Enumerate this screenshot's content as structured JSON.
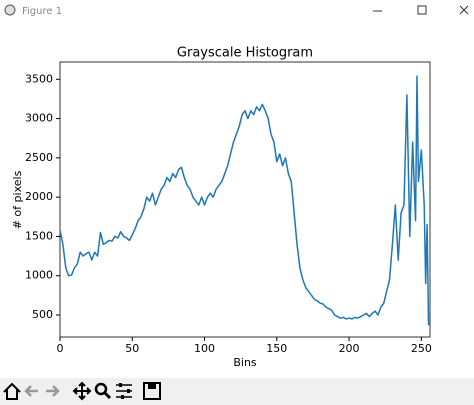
{
  "window": {
    "title": "Figure 1"
  },
  "chart_data": {
    "type": "line",
    "title": "Grayscale Histogram",
    "xlabel": "Bins",
    "ylabel": "# of pixels",
    "x": [
      0,
      2,
      4,
      6,
      8,
      10,
      12,
      14,
      16,
      18,
      20,
      22,
      24,
      26,
      28,
      30,
      32,
      34,
      36,
      38,
      40,
      42,
      44,
      46,
      48,
      50,
      52,
      54,
      56,
      58,
      60,
      62,
      64,
      66,
      68,
      70,
      72,
      74,
      76,
      78,
      80,
      82,
      84,
      86,
      88,
      90,
      92,
      94,
      96,
      98,
      100,
      102,
      104,
      106,
      108,
      110,
      112,
      114,
      116,
      118,
      120,
      122,
      124,
      126,
      128,
      130,
      132,
      134,
      136,
      138,
      140,
      142,
      144,
      146,
      148,
      150,
      152,
      154,
      156,
      158,
      160,
      162,
      164,
      166,
      168,
      170,
      172,
      174,
      176,
      178,
      180,
      182,
      184,
      186,
      188,
      190,
      192,
      194,
      196,
      198,
      200,
      202,
      204,
      206,
      208,
      210,
      212,
      214,
      216,
      218,
      220,
      222,
      224,
      226,
      228,
      230,
      232,
      234,
      236,
      238,
      240,
      242,
      244,
      246,
      247,
      248,
      250,
      252,
      253,
      254,
      255
    ],
    "series": [
      {
        "name": "histogram",
        "color": "#1f77b4",
        "values": [
          1580,
          1400,
          1100,
          1000,
          1010,
          1100,
          1150,
          1300,
          1250,
          1280,
          1300,
          1200,
          1300,
          1250,
          1550,
          1400,
          1420,
          1450,
          1440,
          1500,
          1480,
          1560,
          1500,
          1480,
          1450,
          1520,
          1600,
          1700,
          1750,
          1850,
          2000,
          1950,
          2050,
          1900,
          2000,
          2100,
          2150,
          2250,
          2200,
          2300,
          2250,
          2350,
          2380,
          2250,
          2150,
          2100,
          2000,
          1950,
          1900,
          2000,
          1900,
          2000,
          2050,
          2000,
          2100,
          2150,
          2200,
          2300,
          2400,
          2550,
          2700,
          2800,
          2900,
          3050,
          3100,
          3000,
          3100,
          3050,
          3150,
          3100,
          3180,
          3100,
          3000,
          2800,
          2700,
          2450,
          2550,
          2400,
          2500,
          2300,
          2200,
          1800,
          1400,
          1100,
          950,
          850,
          800,
          750,
          700,
          680,
          650,
          640,
          600,
          580,
          560,
          500,
          480,
          460,
          470,
          450,
          460,
          450,
          470,
          460,
          480,
          500,
          520,
          480,
          520,
          550,
          500,
          600,
          650,
          800,
          950,
          1400,
          1900,
          1200,
          1800,
          1900,
          3300,
          1500,
          2700,
          1700,
          3540,
          2200,
          2600,
          1900,
          900,
          1650,
          370
        ]
      }
    ],
    "xlim": [
      0,
      256
    ],
    "xticks": [
      0,
      50,
      100,
      150,
      200,
      250
    ],
    "ylim": [
      220,
      3720
    ],
    "yticks": [
      500,
      1000,
      1500,
      2000,
      2500,
      3000,
      3500
    ],
    "grid": false
  }
}
